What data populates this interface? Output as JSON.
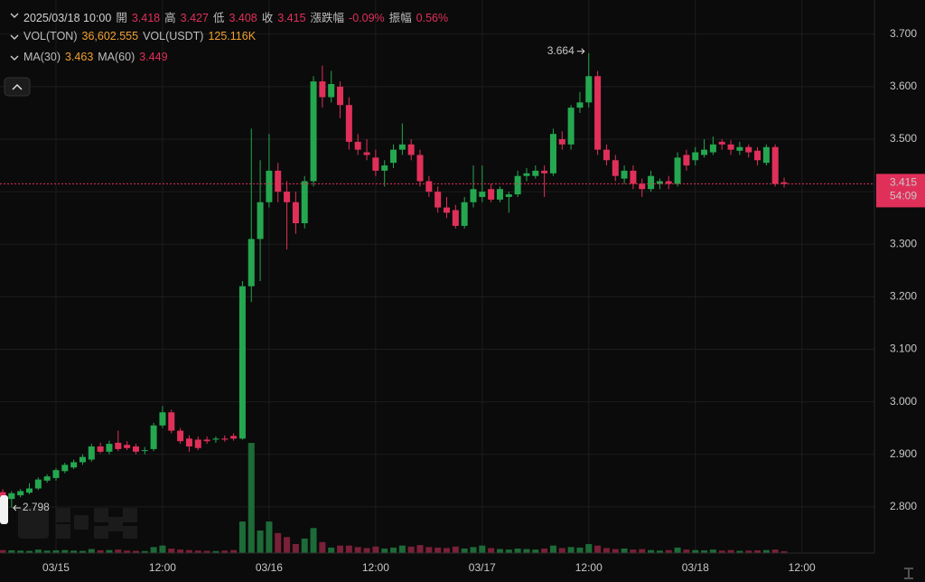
{
  "header": {
    "time": "2025/03/18 10:00",
    "rows": [
      [
        {
          "label": "開",
          "value": "3.418",
          "color": "#e0305a"
        },
        {
          "label": "高",
          "value": "3.427",
          "color": "#e0305a"
        },
        {
          "label": "低",
          "value": "3.408",
          "color": "#e0305a"
        },
        {
          "label": "收",
          "value": "3.415",
          "color": "#e0305a"
        },
        {
          "label": "漲跌幅",
          "value": "-0.09%",
          "color": "#e0305a"
        },
        {
          "label": "振幅",
          "value": "0.56%",
          "color": "#e0305a"
        }
      ],
      [
        {
          "label": "VOL(TON)",
          "value": "36,602.555",
          "color": "#f0a030"
        },
        {
          "label": "VOL(USDT)",
          "value": "125.116K",
          "color": "#f0a030"
        }
      ],
      [
        {
          "label": "MA(30)",
          "value": "3.463",
          "color": "#f0a030"
        },
        {
          "label": "MA(60)",
          "value": "3.449",
          "color": "#e0305a"
        }
      ]
    ]
  },
  "chart_data": {
    "type": "candlestick",
    "categories": [
      null,
      null,
      null,
      null,
      null,
      null,
      "03/15",
      null,
      null,
      null,
      null,
      null,
      null,
      null,
      null,
      null,
      null,
      null,
      "12:00",
      null,
      null,
      null,
      null,
      null,
      null,
      null,
      null,
      null,
      null,
      null,
      "03/16",
      null,
      null,
      null,
      null,
      null,
      null,
      null,
      null,
      null,
      null,
      null,
      "12:00",
      null,
      null,
      null,
      null,
      null,
      null,
      null,
      null,
      null,
      null,
      null,
      "03/17",
      null,
      null,
      null,
      null,
      null,
      null,
      null,
      null,
      null,
      null,
      null,
      "12:00",
      null,
      null,
      null,
      null,
      null,
      null,
      null,
      null,
      null,
      null,
      null,
      "03/18",
      null,
      null,
      null,
      null,
      null,
      null,
      null,
      null,
      null,
      null,
      null,
      "12:00",
      null,
      null,
      null,
      null,
      null,
      null,
      null
    ],
    "open": [
      2.828,
      2.815,
      2.822,
      2.827,
      2.835,
      2.85,
      2.855,
      2.868,
      2.875,
      2.885,
      2.89,
      2.915,
      2.905,
      2.922,
      2.918,
      2.915,
      2.907,
      2.91,
      2.955,
      2.98,
      2.945,
      2.93,
      2.928,
      2.928,
      2.928,
      2.93,
      2.935,
      2.93,
      3.22,
      3.31,
      3.38,
      3.44,
      3.4,
      3.38,
      3.34,
      3.42,
      3.61,
      3.58,
      3.6,
      3.565,
      3.495,
      3.475,
      3.465,
      3.44,
      3.455,
      3.48,
      3.49,
      3.47,
      3.42,
      3.4,
      3.37,
      3.365,
      3.335,
      3.38,
      3.39,
      3.405,
      3.385,
      3.39,
      3.395,
      3.43,
      3.43,
      3.44,
      3.435,
      3.5,
      3.49,
      3.56,
      3.57,
      3.62,
      3.48,
      3.46,
      3.425,
      3.44,
      3.415,
      3.405,
      3.415,
      3.42,
      3.415,
      3.47,
      3.46,
      3.47,
      3.475,
      3.495,
      3.49,
      3.478,
      3.485,
      3.478,
      3.455,
      3.485,
      3.418,
      null,
      null,
      null,
      null,
      null,
      null,
      null,
      null,
      null
    ],
    "high": [
      2.834,
      2.83,
      2.834,
      2.845,
      2.856,
      2.862,
      2.874,
      2.884,
      2.89,
      2.9,
      2.92,
      2.922,
      2.926,
      2.945,
      2.925,
      2.92,
      2.914,
      2.96,
      2.992,
      2.985,
      2.95,
      2.936,
      2.934,
      2.934,
      2.934,
      2.936,
      2.94,
      3.23,
      3.52,
      3.46,
      3.51,
      3.455,
      3.42,
      3.4,
      3.43,
      3.62,
      3.64,
      3.63,
      3.61,
      3.58,
      3.51,
      3.5,
      3.48,
      3.46,
      3.49,
      3.53,
      3.5,
      3.48,
      3.43,
      3.41,
      3.39,
      3.375,
      3.39,
      3.45,
      3.45,
      3.415,
      3.41,
      3.4,
      3.44,
      3.445,
      3.45,
      3.45,
      3.52,
      3.515,
      3.565,
      3.59,
      3.664,
      3.63,
      3.49,
      3.47,
      3.45,
      3.45,
      3.425,
      3.44,
      3.425,
      3.43,
      3.475,
      3.48,
      3.485,
      3.5,
      3.505,
      3.5,
      3.498,
      3.495,
      3.49,
      3.485,
      3.49,
      3.49,
      3.427,
      null,
      null,
      null,
      null,
      null,
      null,
      null,
      null,
      null
    ],
    "low": [
      2.815,
      2.798,
      2.818,
      2.824,
      2.832,
      2.846,
      2.85,
      2.864,
      2.872,
      2.88,
      2.886,
      2.902,
      2.9,
      2.906,
      2.908,
      2.9,
      2.9,
      2.906,
      2.95,
      2.94,
      2.92,
      2.905,
      2.908,
      2.92,
      2.922,
      2.924,
      2.926,
      2.928,
      3.19,
      3.23,
      3.37,
      3.38,
      3.29,
      3.32,
      3.33,
      3.41,
      3.56,
      3.57,
      3.54,
      3.48,
      3.47,
      3.46,
      3.43,
      3.41,
      3.445,
      3.47,
      3.46,
      3.41,
      3.39,
      3.36,
      3.35,
      3.33,
      3.33,
      3.37,
      3.38,
      3.38,
      3.38,
      3.36,
      3.39,
      3.42,
      3.425,
      3.39,
      3.43,
      3.48,
      3.48,
      3.55,
      3.56,
      3.47,
      3.45,
      3.42,
      3.415,
      3.405,
      3.39,
      3.4,
      3.405,
      3.405,
      3.41,
      3.44,
      3.45,
      3.465,
      3.47,
      3.48,
      3.47,
      3.47,
      3.465,
      3.45,
      3.45,
      3.41,
      3.408,
      null,
      null,
      null,
      null,
      null,
      null,
      null,
      null,
      null
    ],
    "close": [
      2.82,
      2.826,
      2.83,
      2.835,
      2.852,
      2.858,
      2.87,
      2.88,
      2.885,
      2.895,
      2.915,
      2.905,
      2.92,
      2.91,
      2.912,
      2.905,
      2.908,
      2.955,
      2.98,
      2.945,
      2.925,
      2.915,
      2.912,
      2.925,
      2.93,
      2.928,
      2.93,
      3.22,
      3.31,
      3.38,
      3.44,
      3.4,
      3.38,
      3.34,
      3.42,
      3.61,
      3.58,
      3.605,
      3.565,
      3.495,
      3.48,
      3.47,
      3.44,
      3.45,
      3.48,
      3.49,
      3.47,
      3.42,
      3.4,
      3.37,
      3.36,
      3.335,
      3.38,
      3.405,
      3.4,
      3.385,
      3.405,
      3.395,
      3.43,
      3.435,
      3.44,
      3.435,
      3.51,
      3.49,
      3.56,
      3.57,
      3.62,
      3.48,
      3.46,
      3.43,
      3.44,
      3.415,
      3.405,
      3.43,
      3.42,
      3.415,
      3.465,
      3.45,
      3.475,
      3.48,
      3.49,
      3.49,
      3.48,
      3.485,
      3.475,
      3.46,
      3.485,
      3.415,
      3.415,
      null,
      null,
      null,
      null,
      null,
      null,
      null,
      null,
      null
    ],
    "volume": [
      60000,
      55000,
      50000,
      45000,
      70000,
      50000,
      55000,
      60000,
      50000,
      45000,
      80000,
      55000,
      60000,
      70000,
      50000,
      45000,
      40000,
      120000,
      150000,
      90000,
      70000,
      60000,
      50000,
      45000,
      40000,
      50000,
      60000,
      630000,
      2200000,
      450000,
      630000,
      400000,
      320000,
      180000,
      290000,
      500000,
      220000,
      110000,
      150000,
      150000,
      120000,
      100000,
      130000,
      90000,
      110000,
      150000,
      130000,
      160000,
      120000,
      110000,
      100000,
      130000,
      90000,
      120000,
      150000,
      100000,
      80000,
      70000,
      90000,
      80000,
      70000,
      90000,
      150000,
      100000,
      120000,
      110000,
      180000,
      150000,
      100000,
      80000,
      90000,
      70000,
      80000,
      60000,
      50000,
      60000,
      110000,
      70000,
      60000,
      55000,
      70000,
      50000,
      60000,
      45000,
      50000,
      55000,
      60000,
      70000,
      36602.555,
      null,
      null,
      null,
      null,
      null,
      null,
      null,
      null,
      null
    ],
    "up_color": "#25a750",
    "down_color": "#e0305a",
    "up_volume_color": "#1d6b38",
    "down_volume_color": "#7a2038",
    "ylim": [
      2.712,
      3.765
    ],
    "yticks": [
      {
        "value": 3.7,
        "label": "3.700"
      },
      {
        "value": 3.6,
        "label": "3.600"
      },
      {
        "value": 3.5,
        "label": "3.500"
      },
      {
        "value": 3.4,
        "label": "3.400"
      },
      {
        "value": 3.3,
        "label": "3.300"
      },
      {
        "value": 3.2,
        "label": "3.200"
      },
      {
        "value": 3.1,
        "label": "3.100"
      },
      {
        "value": 3.0,
        "label": "3.000"
      },
      {
        "value": 2.9,
        "label": "2.900"
      },
      {
        "value": 2.8,
        "label": "2.800"
      }
    ],
    "volume_lim": [
      0,
      2400000
    ],
    "grid": true,
    "countdown": "54:09"
  }
}
